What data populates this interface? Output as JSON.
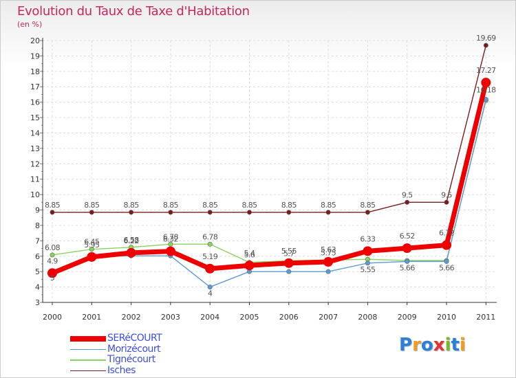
{
  "chart_data": {
    "type": "line",
    "title": "Evolution du Taux de Taxe d'Habitation",
    "subtitle": "(en %)",
    "xlabel": "",
    "ylabel": "(en %)",
    "ylim": [
      3,
      20
    ],
    "yticks": [
      3,
      4,
      5,
      6,
      7,
      8,
      9,
      10,
      11,
      12,
      13,
      14,
      15,
      16,
      17,
      18,
      19,
      20
    ],
    "categories": [
      "2000",
      "2001",
      "2002",
      "2003",
      "2004",
      "2005",
      "2006",
      "2007",
      "2008",
      "2009",
      "2010",
      "2011"
    ],
    "series": [
      {
        "name": "SERéCOURT",
        "color": "#ee0000",
        "values": [
          4.9,
          5.95,
          6.22,
          6.32,
          5.19,
          5.4,
          5.55,
          5.63,
          6.33,
          6.52,
          6.72,
          17.27
        ],
        "labels": [
          "4.9",
          "5.95",
          "6.22",
          "6.32",
          "5.19",
          "5.4",
          "5.55",
          "5.63",
          "6.33",
          "6.52",
          "6.72",
          "17.27"
        ]
      },
      {
        "name": "Morizécourt",
        "color": "#5b9bd5",
        "values": [
          5.0,
          6.02,
          6.02,
          6.02,
          4.0,
          5.0,
          5.0,
          5.0,
          5.55,
          5.66,
          5.66,
          16.18
        ],
        "labels": [
          "5",
          "",
          "",
          "",
          "4",
          "",
          "",
          "",
          "5.55",
          "5.66",
          "5.66",
          "16.18"
        ]
      },
      {
        "name": "Tignécourt",
        "color": "#88d45c",
        "values": [
          6.08,
          6.45,
          6.58,
          6.78,
          6.78,
          5.6,
          5.7,
          5.75,
          5.8,
          5.72,
          5.72,
          16.1
        ],
        "labels": [
          "6.08",
          "6.45",
          "6.58",
          "6.78",
          "6.78",
          "5.6",
          "5.7",
          "5.75",
          "",
          "",
          "",
          ""
        ]
      },
      {
        "name": "Isches",
        "color": "#7a1c1c",
        "values": [
          8.85,
          8.85,
          8.85,
          8.85,
          8.85,
          8.85,
          8.85,
          8.85,
          8.85,
          9.5,
          9.5,
          19.69
        ],
        "labels": [
          "8.85",
          "8.85",
          "8.85",
          "8.85",
          "8.85",
          "8.85",
          "8.85",
          "8.85",
          "8.85",
          "9.5",
          "9.5",
          "19.69"
        ]
      }
    ],
    "legend_position": "bottom-left"
  },
  "logo": {
    "letters": [
      "P",
      "r",
      "o",
      "x",
      "i",
      "t",
      "i"
    ],
    "colors": [
      "#2b7fd4",
      "#f59a1b",
      "#2b7fd4",
      "#e8322f",
      "#7ab929",
      "#2b7fd4",
      "#f59a1b"
    ]
  }
}
